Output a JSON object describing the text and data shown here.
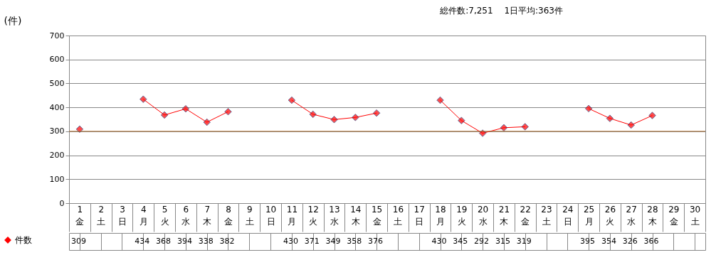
{
  "chart_data": {
    "type": "line",
    "title": "総件数:7,251　 1日平均:363件",
    "ylabel": "(件)",
    "categories": [
      "1 金",
      "2 土",
      "3 日",
      "4 月",
      "5 火",
      "6 水",
      "7 木",
      "8 金",
      "9 土",
      "10 日",
      "11 月",
      "12 火",
      "13 水",
      "14 木",
      "15 金",
      "16 土",
      "17 日",
      "18 月",
      "19 火",
      "20 水",
      "21 木",
      "22 金",
      "23 土",
      "24 日",
      "25 月",
      "26 火",
      "27 水",
      "28 木",
      "29 金",
      "30 土"
    ],
    "series": [
      {
        "name": "件数",
        "color": "#ff0000",
        "values": [
          309,
          null,
          null,
          434,
          368,
          394,
          338,
          382,
          null,
          null,
          430,
          371,
          349,
          358,
          376,
          null,
          null,
          430,
          345,
          292,
          315,
          319,
          null,
          null,
          395,
          354,
          326,
          366,
          null,
          null
        ]
      }
    ],
    "ylim": [
      0,
      700
    ],
    "yticks": [
      0,
      100,
      200,
      300,
      400,
      500,
      600,
      700
    ],
    "grid": "y",
    "marker": "diamond",
    "line_style": "solid",
    "legend": "bottom left",
    "data_labels": true,
    "ref_lines": [
      {
        "axis": "y",
        "value": 300,
        "color": "#b07030"
      }
    ]
  }
}
